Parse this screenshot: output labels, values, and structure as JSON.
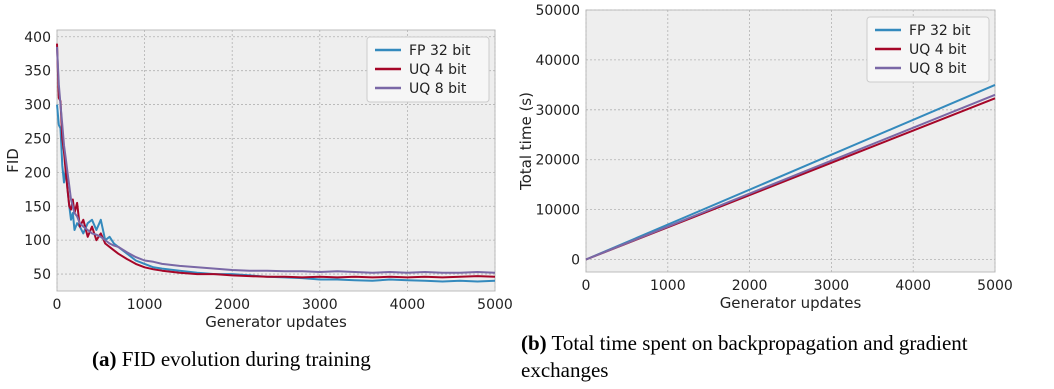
{
  "colors": {
    "fp32": "#348ABD",
    "uq4": "#A60628",
    "uq8": "#7A68A6",
    "panel_bg": "#EEEEEE",
    "grid": "#B2B2B2"
  },
  "captions": {
    "a": {
      "label": "(a)",
      "text": "FID evolution during training"
    },
    "b": {
      "label": "(b)",
      "text_line1": "Total time spent on backpropagation and gradient",
      "text_line2": "exchanges"
    }
  },
  "chart_data": [
    {
      "type": "line",
      "title": "",
      "xlabel": "Generator updates",
      "ylabel": "FID",
      "xlim": [
        0,
        5000
      ],
      "ylim": [
        25,
        410
      ],
      "xticks": [
        0,
        1000,
        2000,
        3000,
        4000,
        5000
      ],
      "yticks": [
        50,
        100,
        150,
        200,
        250,
        300,
        350,
        400
      ],
      "grid": true,
      "legend": "top-right",
      "series": [
        {
          "name": "FP 32 bit",
          "color": "#348ABD",
          "x": [
            0,
            20,
            40,
            60,
            80,
            100,
            120,
            140,
            160,
            180,
            200,
            230,
            260,
            300,
            350,
            400,
            450,
            500,
            550,
            600,
            650,
            700,
            800,
            900,
            1000,
            1100,
            1200,
            1400,
            1600,
            1800,
            2000,
            2200,
            2400,
            2600,
            2800,
            3000,
            3200,
            3400,
            3600,
            3800,
            4000,
            4200,
            4400,
            4600,
            4800,
            5000
          ],
          "y": [
            300,
            270,
            265,
            210,
            185,
            205,
            175,
            150,
            130,
            140,
            115,
            125,
            120,
            110,
            125,
            130,
            115,
            130,
            100,
            105,
            95,
            90,
            80,
            70,
            65,
            60,
            58,
            55,
            52,
            50,
            50,
            48,
            46,
            45,
            44,
            42,
            42,
            41,
            40,
            42,
            41,
            40,
            39,
            40,
            39,
            40
          ]
        },
        {
          "name": "UQ 4 bit",
          "color": "#A60628",
          "x": [
            0,
            20,
            40,
            60,
            80,
            100,
            120,
            140,
            160,
            180,
            200,
            230,
            260,
            300,
            350,
            400,
            450,
            500,
            550,
            600,
            650,
            700,
            800,
            900,
            1000,
            1100,
            1200,
            1400,
            1600,
            1800,
            2000,
            2200,
            2400,
            2600,
            2800,
            3000,
            3200,
            3400,
            3600,
            3800,
            4000,
            4200,
            4400,
            4600,
            4800,
            5000
          ],
          "y": [
            390,
            310,
            305,
            250,
            230,
            200,
            175,
            150,
            145,
            160,
            140,
            155,
            120,
            130,
            105,
            120,
            100,
            110,
            95,
            90,
            85,
            80,
            72,
            65,
            60,
            57,
            55,
            52,
            50,
            50,
            48,
            47,
            46,
            46,
            45,
            46,
            45,
            46,
            45,
            46,
            45,
            46,
            45,
            46,
            47,
            46
          ]
        },
        {
          "name": "UQ 8 bit",
          "color": "#7A68A6",
          "x": [
            0,
            20,
            40,
            60,
            80,
            100,
            120,
            140,
            160,
            180,
            200,
            230,
            260,
            300,
            350,
            400,
            450,
            500,
            550,
            600,
            650,
            700,
            800,
            900,
            1000,
            1100,
            1200,
            1400,
            1600,
            1800,
            2000,
            2200,
            2400,
            2600,
            2800,
            3000,
            3200,
            3400,
            3600,
            3800,
            4000,
            4200,
            4400,
            4600,
            4800,
            5000
          ],
          "y": [
            385,
            330,
            300,
            270,
            240,
            220,
            200,
            180,
            160,
            150,
            140,
            135,
            125,
            120,
            115,
            110,
            108,
            105,
            100,
            95,
            92,
            90,
            82,
            75,
            70,
            68,
            65,
            62,
            60,
            58,
            56,
            55,
            55,
            54,
            54,
            53,
            54,
            53,
            52,
            53,
            52,
            53,
            52,
            52,
            53,
            52
          ]
        }
      ]
    },
    {
      "type": "line",
      "title": "",
      "xlabel": "Generator updates",
      "ylabel": "Total time (s)",
      "xlim": [
        0,
        5000
      ],
      "ylim": [
        -2500,
        50000
      ],
      "xticks": [
        0,
        1000,
        2000,
        3000,
        4000,
        5000
      ],
      "yticks": [
        0,
        10000,
        20000,
        30000,
        40000,
        50000
      ],
      "grid": true,
      "legend": "top-right",
      "series": [
        {
          "name": "FP 32 bit",
          "color": "#348ABD",
          "x": [
            0,
            5000
          ],
          "y": [
            0,
            35000
          ]
        },
        {
          "name": "UQ 4 bit",
          "color": "#A60628",
          "x": [
            0,
            5000
          ],
          "y": [
            0,
            32300
          ]
        },
        {
          "name": "UQ 8 bit",
          "color": "#7A68A6",
          "x": [
            0,
            5000
          ],
          "y": [
            0,
            33000
          ]
        }
      ]
    }
  ]
}
